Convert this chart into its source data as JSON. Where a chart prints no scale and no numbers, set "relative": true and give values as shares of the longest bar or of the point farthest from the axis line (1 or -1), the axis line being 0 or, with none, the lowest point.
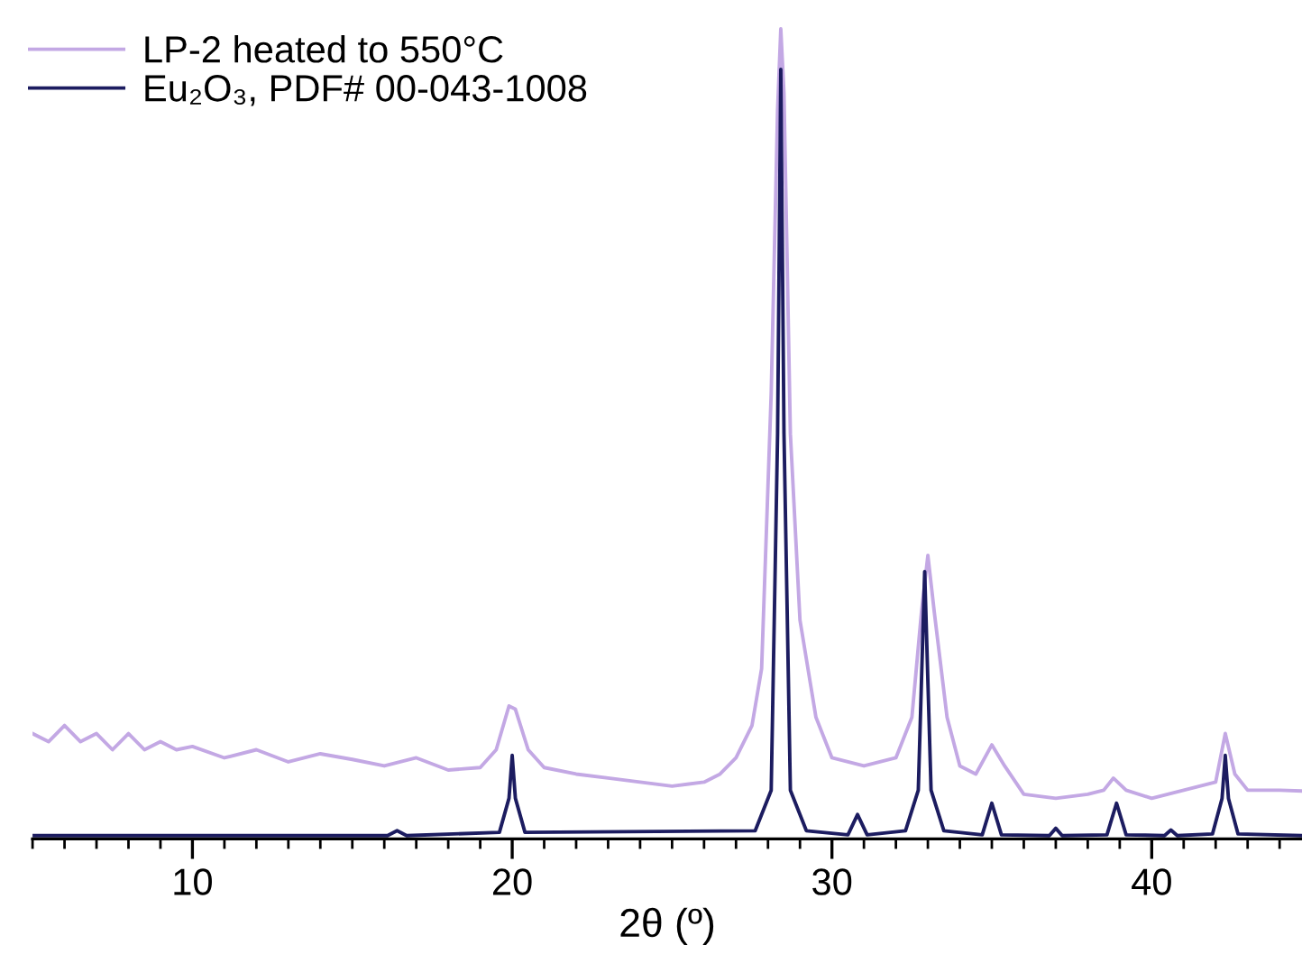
{
  "chart_data": {
    "type": "line",
    "relative": true,
    "xlabel": "2θ (º)",
    "xlim": [
      5,
      44.7
    ],
    "xticks": [
      {
        "value": 5,
        "label": null
      },
      {
        "value": 6,
        "label": null
      },
      {
        "value": 7,
        "label": null
      },
      {
        "value": 8,
        "label": null
      },
      {
        "value": 9,
        "label": null
      },
      10,
      {
        "value": 11,
        "label": null
      },
      {
        "value": 12,
        "label": null
      },
      {
        "value": 13,
        "label": null
      },
      {
        "value": 14,
        "label": null
      },
      {
        "value": 15,
        "label": null
      },
      {
        "value": 16,
        "label": null
      },
      {
        "value": 17,
        "label": null
      },
      {
        "value": 18,
        "label": null
      },
      {
        "value": 19,
        "label": null
      },
      20,
      {
        "value": 21,
        "label": null
      },
      {
        "value": 22,
        "label": null
      },
      {
        "value": 23,
        "label": null
      },
      {
        "value": 24,
        "label": null
      },
      {
        "value": 25,
        "label": null
      },
      {
        "value": 26,
        "label": null
      },
      {
        "value": 27,
        "label": null
      },
      {
        "value": 28,
        "label": null
      },
      {
        "value": 29,
        "label": null
      },
      30,
      {
        "value": 31,
        "label": null
      },
      {
        "value": 32,
        "label": null
      },
      {
        "value": 33,
        "label": null
      },
      {
        "value": 34,
        "label": null
      },
      {
        "value": 35,
        "label": null
      },
      {
        "value": 36,
        "label": null
      },
      {
        "value": 37,
        "label": null
      },
      {
        "value": 38,
        "label": null
      },
      {
        "value": 39,
        "label": null
      },
      40,
      {
        "value": 41,
        "label": null
      },
      {
        "value": 42,
        "label": null
      },
      {
        "value": 43,
        "label": null
      },
      {
        "value": 44,
        "label": null
      }
    ],
    "legend": "top left",
    "grid": false,
    "tick_labels": "x",
    "series": [
      {
        "name": "LP-2 heated to 550°C",
        "color": "#c3a8e4",
        "x": [
          5,
          5.5,
          6,
          6.5,
          7,
          7.5,
          8,
          8.5,
          9,
          9.5,
          10,
          11,
          12,
          13,
          14,
          15,
          16,
          17,
          18,
          19,
          19.5,
          19.9,
          20.1,
          20.5,
          21,
          22,
          23,
          24,
          25,
          26,
          26.5,
          27,
          27.5,
          27.8,
          28.1,
          28.3,
          28.4,
          28.5,
          28.7,
          29,
          29.5,
          30,
          31,
          32,
          32.5,
          32.8,
          33,
          33.2,
          33.6,
          34,
          34.5,
          35,
          35.4,
          36,
          37,
          38,
          38.5,
          38.8,
          39.2,
          40,
          41,
          42,
          42.3,
          42.6,
          43,
          44,
          44.7
        ],
        "values": [
          0.13,
          0.12,
          0.14,
          0.12,
          0.13,
          0.11,
          0.13,
          0.11,
          0.12,
          0.11,
          0.114,
          0.1,
          0.11,
          0.095,
          0.105,
          0.098,
          0.09,
          0.1,
          0.085,
          0.088,
          0.11,
          0.164,
          0.16,
          0.11,
          0.088,
          0.08,
          0.075,
          0.07,
          0.065,
          0.07,
          0.08,
          0.1,
          0.14,
          0.21,
          0.55,
          0.9,
          1.0,
          0.92,
          0.5,
          0.27,
          0.15,
          0.1,
          0.09,
          0.1,
          0.15,
          0.28,
          0.35,
          0.28,
          0.15,
          0.09,
          0.08,
          0.116,
          0.09,
          0.055,
          0.05,
          0.055,
          0.06,
          0.075,
          0.06,
          0.05,
          0.06,
          0.07,
          0.13,
          0.08,
          0.06,
          0.06,
          0.059
        ]
      },
      {
        "name": "Eu₂O₃, PDF# 00-043-1008",
        "color": "#1c1c60",
        "x": [
          5,
          16.1,
          16.4,
          16.7,
          19.6,
          19.9,
          20.0,
          20.1,
          20.4,
          27.6,
          28.1,
          28.3,
          28.4,
          28.5,
          28.7,
          29.2,
          30.5,
          30.8,
          31.1,
          32.3,
          32.7,
          32.9,
          33.1,
          33.5,
          34.7,
          35.0,
          35.3,
          36.8,
          37.0,
          37.2,
          38.6,
          38.9,
          39.2,
          40.4,
          40.6,
          40.8,
          41.9,
          42.2,
          42.3,
          42.4,
          42.7,
          44.7
        ],
        "values": [
          0.004,
          0.004,
          0.01,
          0.004,
          0.008,
          0.05,
          0.103,
          0.05,
          0.008,
          0.01,
          0.06,
          0.5,
          0.95,
          0.5,
          0.06,
          0.01,
          0.005,
          0.03,
          0.005,
          0.01,
          0.06,
          0.33,
          0.06,
          0.01,
          0.005,
          0.044,
          0.005,
          0.004,
          0.013,
          0.004,
          0.005,
          0.044,
          0.005,
          0.004,
          0.011,
          0.004,
          0.006,
          0.05,
          0.103,
          0.05,
          0.006,
          0.004
        ]
      }
    ]
  }
}
